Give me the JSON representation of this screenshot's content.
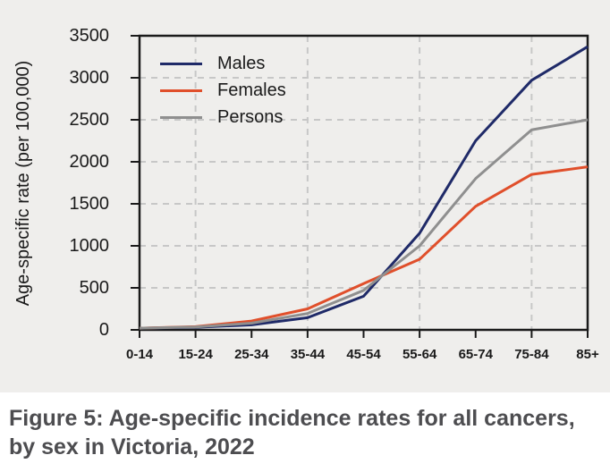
{
  "panel": {
    "background": "#efeeec"
  },
  "caption": {
    "line1": "Figure 5: Age-specific incidence rates for all cancers,",
    "line2": "by sex in Victoria, 2022"
  },
  "chart_data": {
    "type": "line",
    "title": "",
    "xlabel": "",
    "ylabel": "Age-specific rate (per 100,000)",
    "categories": [
      "0-14",
      "15-24",
      "25-34",
      "35-44",
      "45-54",
      "55-64",
      "65-74",
      "75-84",
      "85+"
    ],
    "series": [
      {
        "name": "Males",
        "color": "#1f2a68",
        "values": [
          20,
          30,
          60,
          145,
          400,
          1150,
          2250,
          2970,
          3370
        ]
      },
      {
        "name": "Females",
        "color": "#e04f2b",
        "values": [
          20,
          38,
          105,
          250,
          550,
          840,
          1470,
          1850,
          1940
        ]
      },
      {
        "name": "Persons",
        "color": "#8f8f8f",
        "values": [
          20,
          34,
          80,
          195,
          470,
          1000,
          1800,
          2380,
          2500
        ]
      }
    ],
    "ylim": [
      0,
      3500
    ],
    "yticks": [
      0,
      500,
      1000,
      1500,
      2000,
      2500,
      3000,
      3500
    ],
    "grid": {
      "horizontal": "dashed",
      "vertical_at_categories": [
        "15-24",
        "35-44",
        "55-64",
        "75-84"
      ],
      "color": "#c7c7c7"
    },
    "axis_color": "#1a1a1a",
    "legend_position": "top-left-inside"
  }
}
